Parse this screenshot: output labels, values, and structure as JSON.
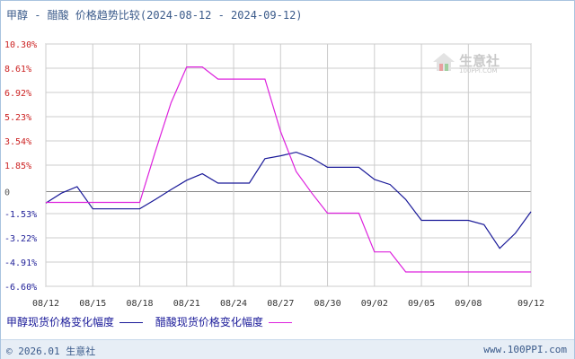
{
  "title": "甲醇 - 醋酸 价格趋势比较(2024-08-12 - 2024-09-12)",
  "watermark": {
    "text": "生意社",
    "url": "100PPI.COM"
  },
  "footer": {
    "copyright": "© 2026.01 生意社",
    "site": "www.100PPI.com"
  },
  "chart_data": {
    "type": "line",
    "y_ticks": [
      "10.30%",
      "8.61%",
      "6.92%",
      "5.23%",
      "3.54%",
      "1.85%",
      "0",
      "-1.53%",
      "-3.22%",
      "-4.91%",
      "-6.60%"
    ],
    "y_values": [
      10.3,
      8.61,
      6.92,
      5.23,
      3.54,
      1.85,
      0,
      -1.53,
      -3.22,
      -4.91,
      -6.6
    ],
    "ylim": [
      -6.6,
      10.3
    ],
    "x_ticks": [
      "08/12",
      "08/15",
      "08/18",
      "08/21",
      "08/24",
      "08/27",
      "08/30",
      "09/02",
      "09/05",
      "09/08",
      "09/12"
    ],
    "x_tick_days": [
      0,
      3,
      6,
      9,
      12,
      15,
      18,
      21,
      24,
      27,
      31
    ],
    "grid": true,
    "series": [
      {
        "name": "甲醇现货价格变化幅度",
        "color": "#1a1a99",
        "points": [
          [
            0,
            -0.8
          ],
          [
            1,
            -0.1
          ],
          [
            2,
            0.35
          ],
          [
            3,
            -1.2
          ],
          [
            4,
            -1.2
          ],
          [
            5,
            -1.2
          ],
          [
            6,
            -1.2
          ],
          [
            7,
            -0.55
          ],
          [
            8,
            0.15
          ],
          [
            9,
            0.8
          ],
          [
            10,
            1.25
          ],
          [
            11,
            0.6
          ],
          [
            12,
            0.6
          ],
          [
            13,
            0.6
          ],
          [
            14,
            2.3
          ],
          [
            15,
            2.5
          ],
          [
            16,
            2.75
          ],
          [
            17,
            2.35
          ],
          [
            18,
            1.7
          ],
          [
            19,
            1.7
          ],
          [
            20,
            1.7
          ],
          [
            21,
            0.85
          ],
          [
            22,
            0.5
          ],
          [
            23,
            -0.55
          ],
          [
            24,
            -2.0
          ],
          [
            25,
            -2.0
          ],
          [
            26,
            -2.0
          ],
          [
            27,
            -2.0
          ],
          [
            28,
            -2.3
          ],
          [
            29,
            -3.95
          ],
          [
            30,
            -2.9
          ],
          [
            31,
            -1.4
          ]
        ]
      },
      {
        "name": "醋酸现货价格变化幅度",
        "color": "#dd22dd",
        "points": [
          [
            0,
            -0.75
          ],
          [
            1,
            -0.75
          ],
          [
            2,
            -0.75
          ],
          [
            3,
            -0.75
          ],
          [
            4,
            -0.75
          ],
          [
            5,
            -0.75
          ],
          [
            6,
            -0.75
          ],
          [
            7,
            2.8
          ],
          [
            8,
            6.2
          ],
          [
            9,
            8.7
          ],
          [
            10,
            8.7
          ],
          [
            11,
            7.85
          ],
          [
            12,
            7.85
          ],
          [
            13,
            7.85
          ],
          [
            14,
            7.85
          ],
          [
            15,
            4.2
          ],
          [
            16,
            1.4
          ],
          [
            17,
            -0.1
          ],
          [
            18,
            -1.5
          ],
          [
            19,
            -1.5
          ],
          [
            20,
            -1.5
          ],
          [
            21,
            -4.2
          ],
          [
            22,
            -4.2
          ],
          [
            23,
            -5.6
          ],
          [
            24,
            -5.6
          ],
          [
            25,
            -5.6
          ],
          [
            26,
            -5.6
          ],
          [
            27,
            -5.6
          ],
          [
            28,
            -5.6
          ],
          [
            29,
            -5.6
          ],
          [
            30,
            -5.6
          ],
          [
            31,
            -5.6
          ]
        ]
      }
    ]
  }
}
